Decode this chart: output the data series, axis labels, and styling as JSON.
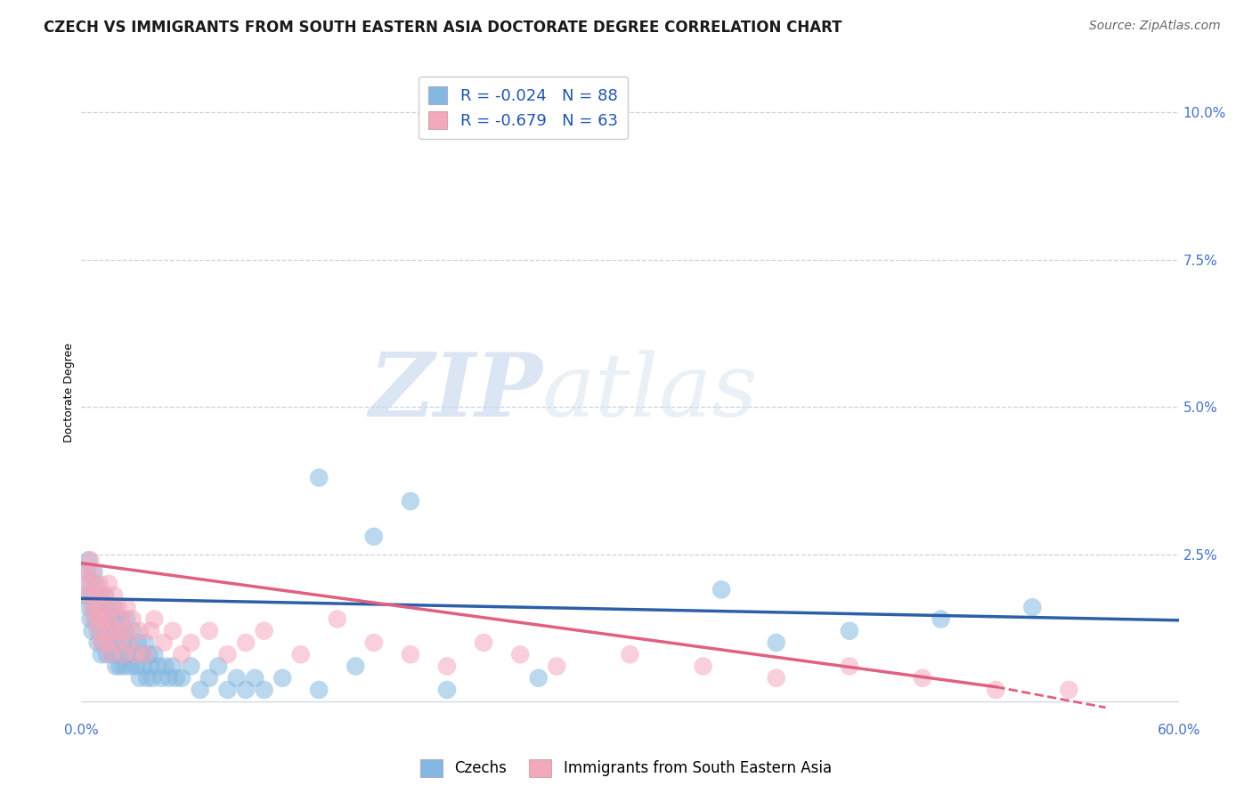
{
  "title": "CZECH VS IMMIGRANTS FROM SOUTH EASTERN ASIA DOCTORATE DEGREE CORRELATION CHART",
  "source": "Source: ZipAtlas.com",
  "ylabel": "Doctorate Degree",
  "xlim": [
    0.0,
    0.6
  ],
  "ylim": [
    -0.003,
    0.108
  ],
  "yticks_right": [
    0.0,
    0.025,
    0.05,
    0.075,
    0.1
  ],
  "yticklabels_right": [
    "",
    "2.5%",
    "5.0%",
    "7.5%",
    "10.0%"
  ],
  "legend1_label": "R = -0.024   N = 88",
  "legend2_label": "R = -0.679   N = 63",
  "color_blue": "#85b8e0",
  "color_pink": "#f4a8bc",
  "trendline_blue": "#2c5fa8",
  "trendline_pink": "#e06080",
  "watermark_zip": "ZIP",
  "watermark_atlas": "atlas",
  "title_fontsize": 12,
  "label_fontsize": 9,
  "tick_fontsize": 11,
  "trend_blue_x0": 0.0,
  "trend_blue_y0": 0.0175,
  "trend_blue_x1": 0.6,
  "trend_blue_y1": 0.0138,
  "trend_pink_x0": 0.0,
  "trend_pink_y0": 0.0235,
  "trend_pink_x1": 0.5,
  "trend_pink_y1": 0.0025,
  "trend_pink_dash_x1": 0.56,
  "trend_pink_dash_y1": -0.001,
  "czechs_x": [
    0.002,
    0.003,
    0.004,
    0.004,
    0.005,
    0.005,
    0.006,
    0.006,
    0.007,
    0.007,
    0.008,
    0.008,
    0.009,
    0.009,
    0.01,
    0.01,
    0.011,
    0.011,
    0.012,
    0.012,
    0.013,
    0.013,
    0.014,
    0.014,
    0.015,
    0.015,
    0.016,
    0.017,
    0.017,
    0.018,
    0.018,
    0.019,
    0.019,
    0.02,
    0.02,
    0.021,
    0.021,
    0.022,
    0.022,
    0.023,
    0.024,
    0.024,
    0.025,
    0.025,
    0.026,
    0.027,
    0.028,
    0.029,
    0.03,
    0.031,
    0.032,
    0.033,
    0.034,
    0.035,
    0.036,
    0.037,
    0.038,
    0.039,
    0.04,
    0.042,
    0.044,
    0.046,
    0.048,
    0.05,
    0.052,
    0.055,
    0.06,
    0.065,
    0.07,
    0.075,
    0.08,
    0.085,
    0.09,
    0.095,
    0.1,
    0.11,
    0.13,
    0.15,
    0.2,
    0.25,
    0.13,
    0.16,
    0.18,
    0.35,
    0.52,
    0.47,
    0.42,
    0.38
  ],
  "czechs_y": [
    0.018,
    0.022,
    0.016,
    0.024,
    0.014,
    0.02,
    0.012,
    0.018,
    0.016,
    0.022,
    0.014,
    0.02,
    0.01,
    0.016,
    0.012,
    0.018,
    0.008,
    0.014,
    0.01,
    0.016,
    0.012,
    0.018,
    0.008,
    0.014,
    0.01,
    0.016,
    0.012,
    0.008,
    0.014,
    0.01,
    0.016,
    0.006,
    0.012,
    0.008,
    0.014,
    0.006,
    0.012,
    0.008,
    0.014,
    0.01,
    0.006,
    0.012,
    0.008,
    0.014,
    0.01,
    0.006,
    0.012,
    0.008,
    0.006,
    0.01,
    0.004,
    0.008,
    0.006,
    0.01,
    0.004,
    0.008,
    0.006,
    0.004,
    0.008,
    0.006,
    0.004,
    0.006,
    0.004,
    0.006,
    0.004,
    0.004,
    0.006,
    0.002,
    0.004,
    0.006,
    0.002,
    0.004,
    0.002,
    0.004,
    0.002,
    0.004,
    0.002,
    0.006,
    0.002,
    0.004,
    0.038,
    0.028,
    0.034,
    0.019,
    0.016,
    0.014,
    0.012,
    0.01
  ],
  "immigrants_x": [
    0.002,
    0.003,
    0.004,
    0.005,
    0.006,
    0.006,
    0.007,
    0.007,
    0.008,
    0.008,
    0.009,
    0.009,
    0.01,
    0.01,
    0.011,
    0.011,
    0.012,
    0.013,
    0.013,
    0.014,
    0.015,
    0.015,
    0.016,
    0.017,
    0.017,
    0.018,
    0.019,
    0.02,
    0.021,
    0.022,
    0.023,
    0.024,
    0.025,
    0.026,
    0.028,
    0.03,
    0.032,
    0.035,
    0.038,
    0.04,
    0.045,
    0.05,
    0.055,
    0.06,
    0.07,
    0.08,
    0.09,
    0.1,
    0.12,
    0.14,
    0.16,
    0.18,
    0.2,
    0.22,
    0.24,
    0.26,
    0.3,
    0.34,
    0.38,
    0.42,
    0.46,
    0.5,
    0.54
  ],
  "immigrants_y": [
    0.022,
    0.02,
    0.018,
    0.024,
    0.016,
    0.022,
    0.014,
    0.02,
    0.016,
    0.018,
    0.012,
    0.018,
    0.014,
    0.02,
    0.01,
    0.016,
    0.014,
    0.012,
    0.018,
    0.01,
    0.014,
    0.02,
    0.008,
    0.016,
    0.012,
    0.018,
    0.01,
    0.016,
    0.012,
    0.014,
    0.008,
    0.012,
    0.016,
    0.01,
    0.014,
    0.008,
    0.012,
    0.008,
    0.012,
    0.014,
    0.01,
    0.012,
    0.008,
    0.01,
    0.012,
    0.008,
    0.01,
    0.012,
    0.008,
    0.014,
    0.01,
    0.008,
    0.006,
    0.01,
    0.008,
    0.006,
    0.008,
    0.006,
    0.004,
    0.006,
    0.004,
    0.002,
    0.002
  ]
}
